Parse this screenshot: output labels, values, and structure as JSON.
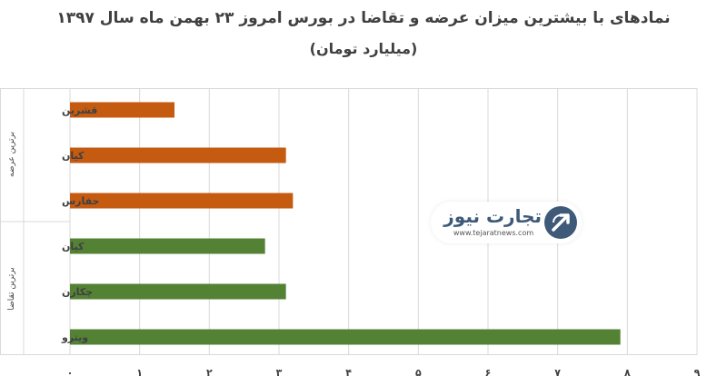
{
  "chart_data": {
    "type": "bar",
    "orientation": "horizontal",
    "title": "نمادهای با بیشترین میزان عرضه و تقاضا در بورس امروز ۲۳ بهمن ماه سال ۱۳۹۷",
    "subtitle": "(میلیارد تومان)",
    "groups": [
      {
        "name": "برترین عرضه",
        "color": "#c55a11",
        "categories": [
          "قشرین",
          "کیان",
          "حفارس"
        ],
        "values": [
          1.5,
          3.1,
          3.2
        ]
      },
      {
        "name": "برترین تقاضا",
        "color": "#548235",
        "categories": [
          "کیان",
          "چکارن",
          "ویترو"
        ],
        "values": [
          2.8,
          3.1,
          7.9
        ]
      }
    ],
    "xlim": [
      0,
      9
    ],
    "xticks": [
      "۰",
      "۱",
      "۲",
      "۳",
      "۴",
      "۵",
      "۶",
      "۷",
      "۸",
      "۹"
    ],
    "grid": true,
    "legend": "none"
  },
  "watermark": {
    "brand": "تجارت نیوز",
    "url": "www.tejaratnews.com"
  },
  "colors": {
    "gridline": "#d9d9d9",
    "text": "#404040",
    "brand": "#3e5a78"
  }
}
